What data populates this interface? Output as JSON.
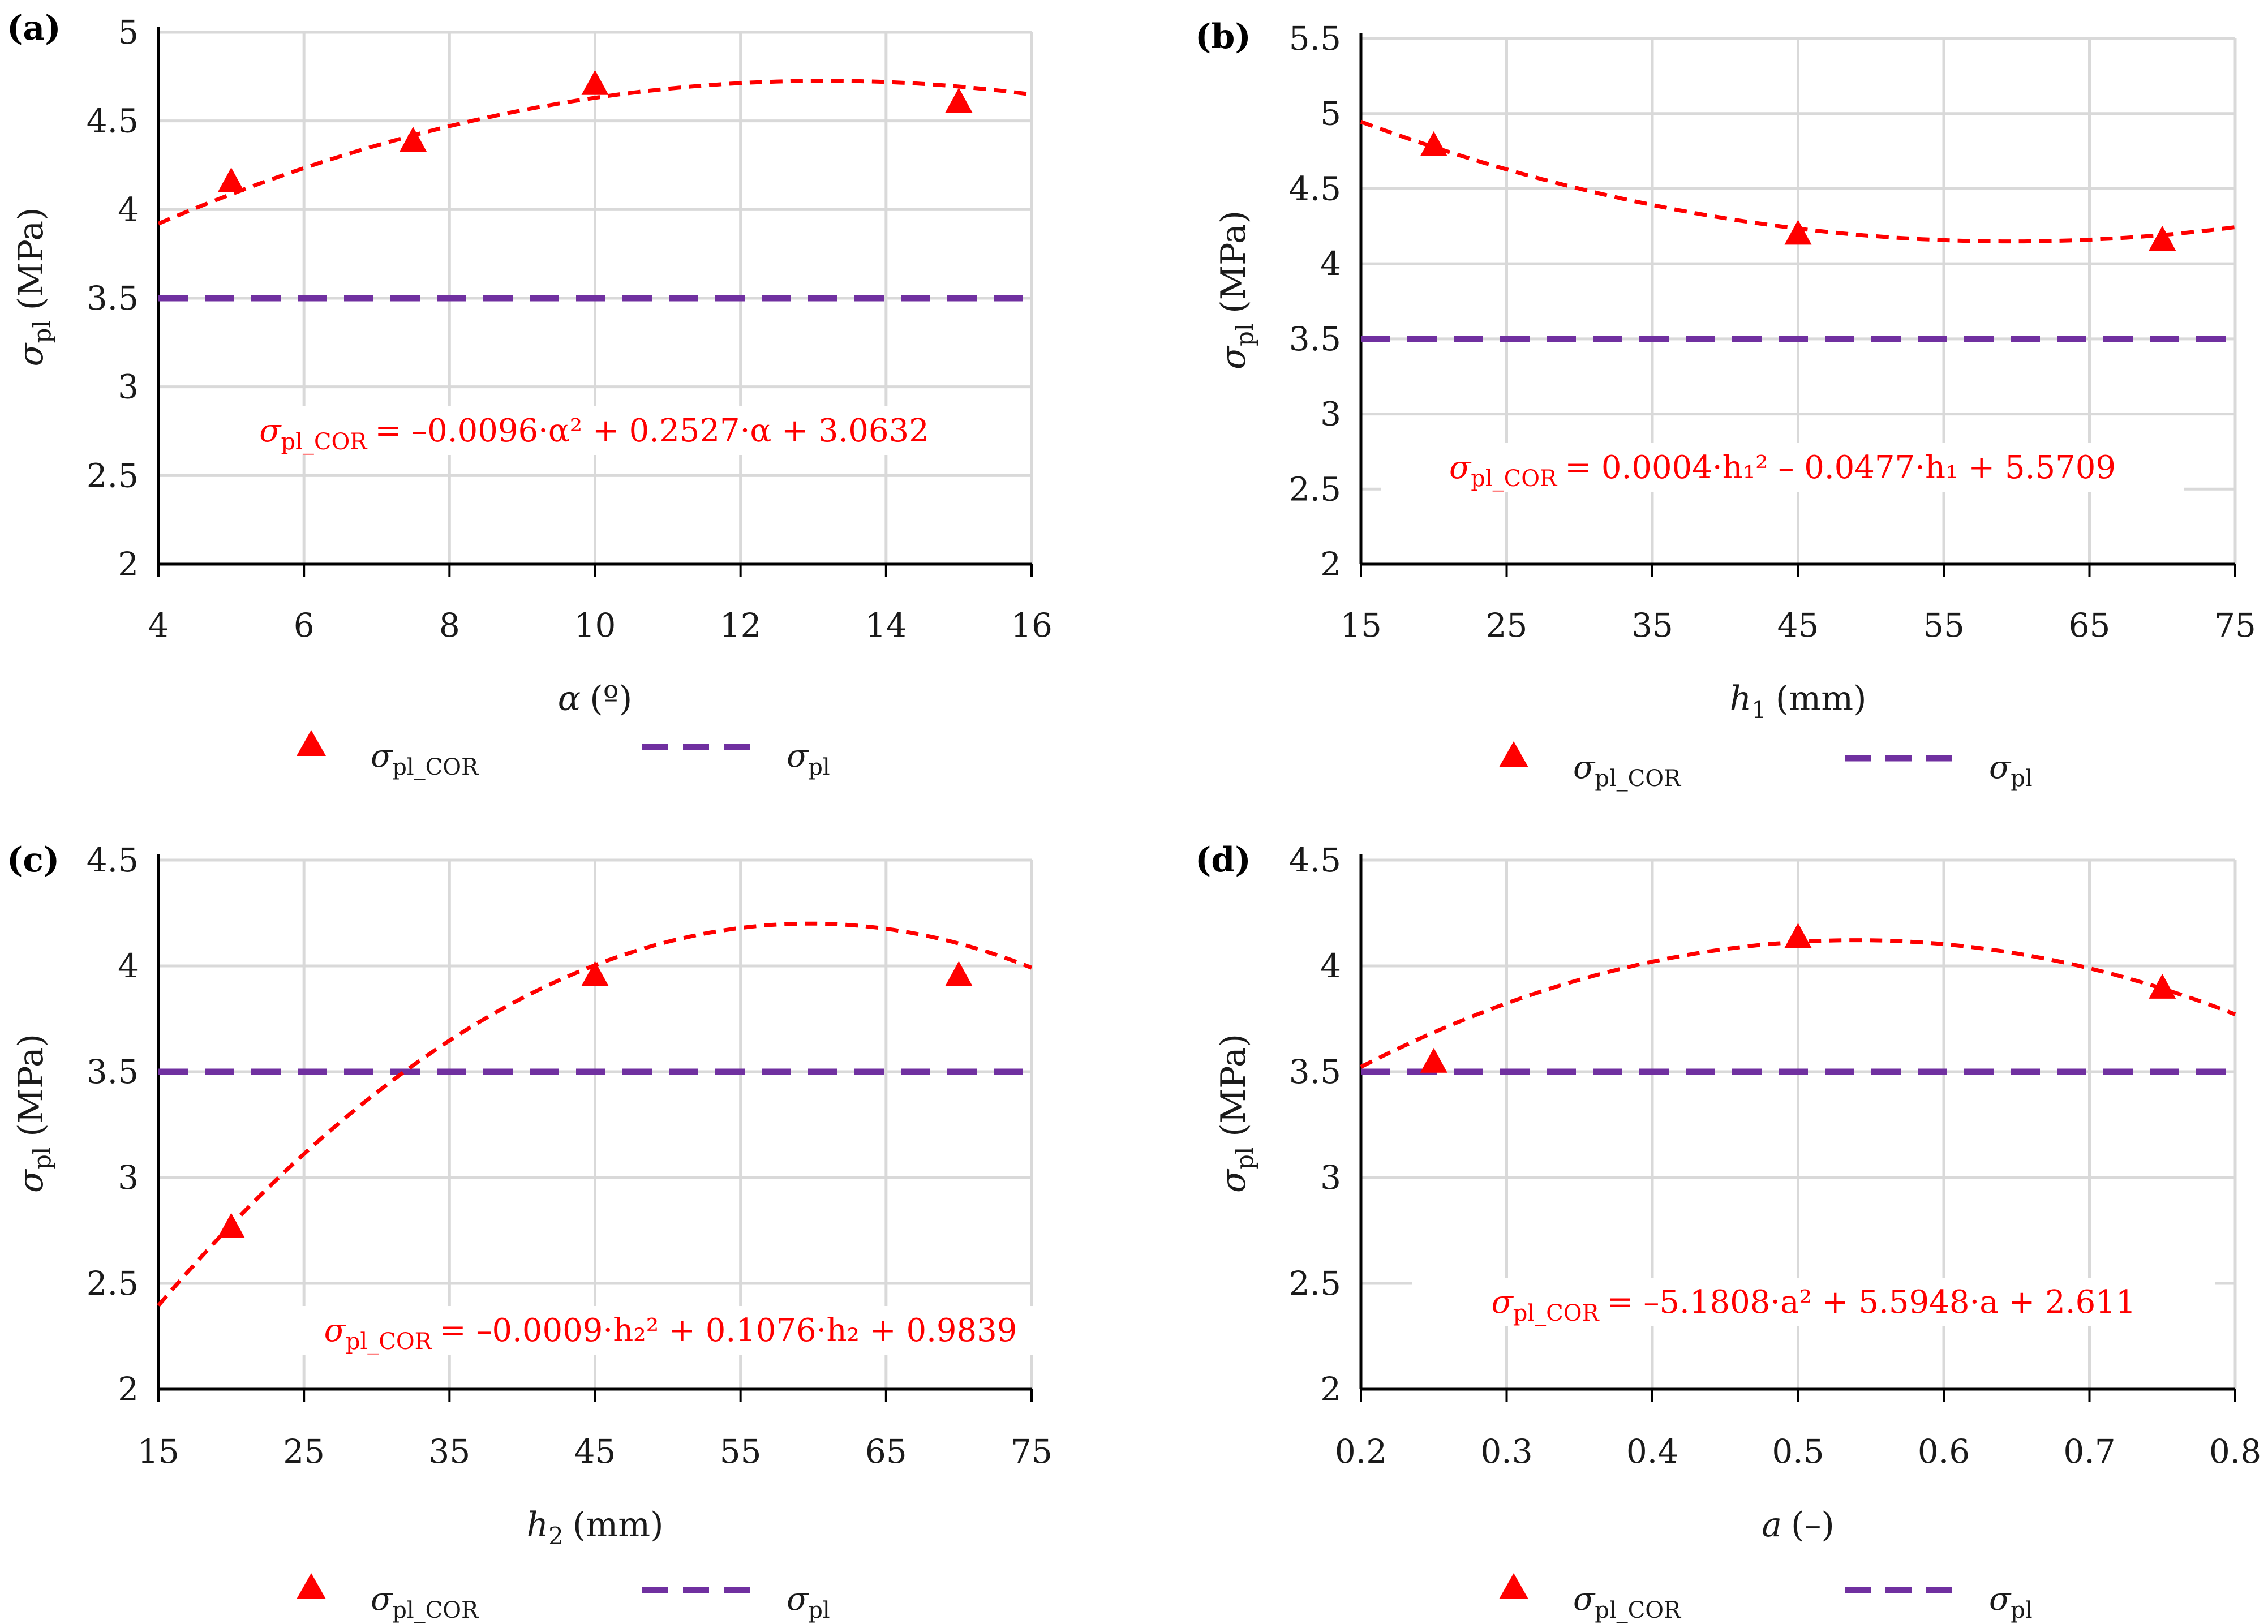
{
  "colors": {
    "fit": "#ff0000",
    "constant": "#7030a0",
    "grid": "#d9d9d9",
    "axis": "#000000",
    "equation": "#ff0000"
  },
  "legend": {
    "cor_symbol": "σ",
    "cor_sub": "pl_COR",
    "const_symbol": "σ",
    "const_sub": "pl"
  },
  "chart_data": [
    {
      "type": "scatter",
      "panel": "(a)",
      "xlabel_symbol": "α",
      "xlabel_sub": "",
      "xlabel_unit": "(º)",
      "ylabel_symbol": "σ",
      "ylabel_sub": "pl",
      "ylabel_unit": "(MPa)",
      "xlim": [
        4,
        16
      ],
      "ylim": [
        2,
        5
      ],
      "xticks": [
        "4",
        "6",
        "8",
        "10",
        "12",
        "14",
        "16"
      ],
      "yticks": [
        "2",
        "2.5",
        "3",
        "3.5",
        "4",
        "4.5",
        "5"
      ],
      "series": [
        {
          "name": "σpl_COR",
          "x": [
            5,
            7.5,
            10,
            15
          ],
          "y": [
            4.15,
            4.38,
            4.7,
            4.6
          ]
        },
        {
          "name": "σpl",
          "constant": 3.5
        }
      ],
      "fit": {
        "a2": -0.0096,
        "a1": 0.2527,
        "a0": 3.0632
      },
      "equation": {
        "lhs_symbol": "σ",
        "lhs_sub": "pl_COR",
        "rhs": "= –0.0096·α² + 0.2527·α + 3.0632"
      }
    },
    {
      "type": "scatter",
      "panel": "(b)",
      "xlabel_symbol": "h",
      "xlabel_sub": "1",
      "xlabel_unit": "(mm)",
      "ylabel_symbol": "σ",
      "ylabel_sub": "pl",
      "ylabel_unit": "(MPa)",
      "xlim": [
        15,
        75
      ],
      "ylim": [
        2,
        5.5
      ],
      "xticks": [
        "15",
        "25",
        "35",
        "45",
        "55",
        "65",
        "75"
      ],
      "yticks": [
        "2",
        "2.5",
        "3",
        "3.5",
        "4",
        "4.5",
        "5",
        "5.5"
      ],
      "series": [
        {
          "name": "σpl_COR",
          "x": [
            20,
            45,
            70
          ],
          "y": [
            4.78,
            4.19,
            4.15
          ]
        },
        {
          "name": "σpl",
          "constant": 3.5
        }
      ],
      "fit": {
        "a2": 0.0004,
        "a1": -0.0477,
        "a0": 5.5709
      },
      "equation": {
        "lhs_symbol": "σ",
        "lhs_sub": "pl_COR",
        "rhs": "= 0.0004·h₁² – 0.0477·h₁ + 5.5709"
      }
    },
    {
      "type": "scatter",
      "panel": "(c)",
      "xlabel_symbol": "h",
      "xlabel_sub": "2",
      "xlabel_unit": "(mm)",
      "ylabel_symbol": "σ",
      "ylabel_sub": "pl",
      "ylabel_unit": "(MPa)",
      "xlim": [
        15,
        75
      ],
      "ylim": [
        2,
        4.5
      ],
      "xticks": [
        "15",
        "25",
        "35",
        "45",
        "55",
        "65",
        "75"
      ],
      "yticks": [
        "2",
        "2.5",
        "3",
        "3.5",
        "4",
        "4.5"
      ],
      "series": [
        {
          "name": "σpl_COR",
          "x": [
            20,
            45,
            70
          ],
          "y": [
            2.76,
            3.95,
            3.95
          ]
        },
        {
          "name": "σpl",
          "constant": 3.5
        }
      ],
      "fit": {
        "a2": -0.0009,
        "a1": 0.1076,
        "a0": 0.9839
      },
      "equation": {
        "lhs_symbol": "σ",
        "lhs_sub": "pl_COR",
        "rhs": "= –0.0009·h₂² + 0.1076·h₂ + 0.9839"
      }
    },
    {
      "type": "scatter",
      "panel": "(d)",
      "xlabel_symbol": "a",
      "xlabel_sub": "",
      "xlabel_unit": "(–)",
      "ylabel_symbol": "σ",
      "ylabel_sub": "pl",
      "ylabel_unit": "(MPa)",
      "xlim": [
        0.2,
        0.8
      ],
      "ylim": [
        2,
        4.5
      ],
      "xticks": [
        "0.2",
        "0.3",
        "0.4",
        "0.5",
        "0.6",
        "0.7",
        "0.8"
      ],
      "yticks": [
        "2",
        "2.5",
        "3",
        "3.5",
        "4",
        "4.5"
      ],
      "series": [
        {
          "name": "σpl_COR",
          "x": [
            0.25,
            0.5,
            0.75
          ],
          "y": [
            3.54,
            4.13,
            3.89
          ]
        },
        {
          "name": "σpl",
          "constant": 3.5
        }
      ],
      "fit": {
        "a2": -5.1808,
        "a1": 5.5948,
        "a0": 2.611
      },
      "equation": {
        "lhs_symbol": "σ",
        "lhs_sub": "pl_COR",
        "rhs": "= –5.1808·a² + 5.5948·a + 2.611"
      }
    }
  ]
}
